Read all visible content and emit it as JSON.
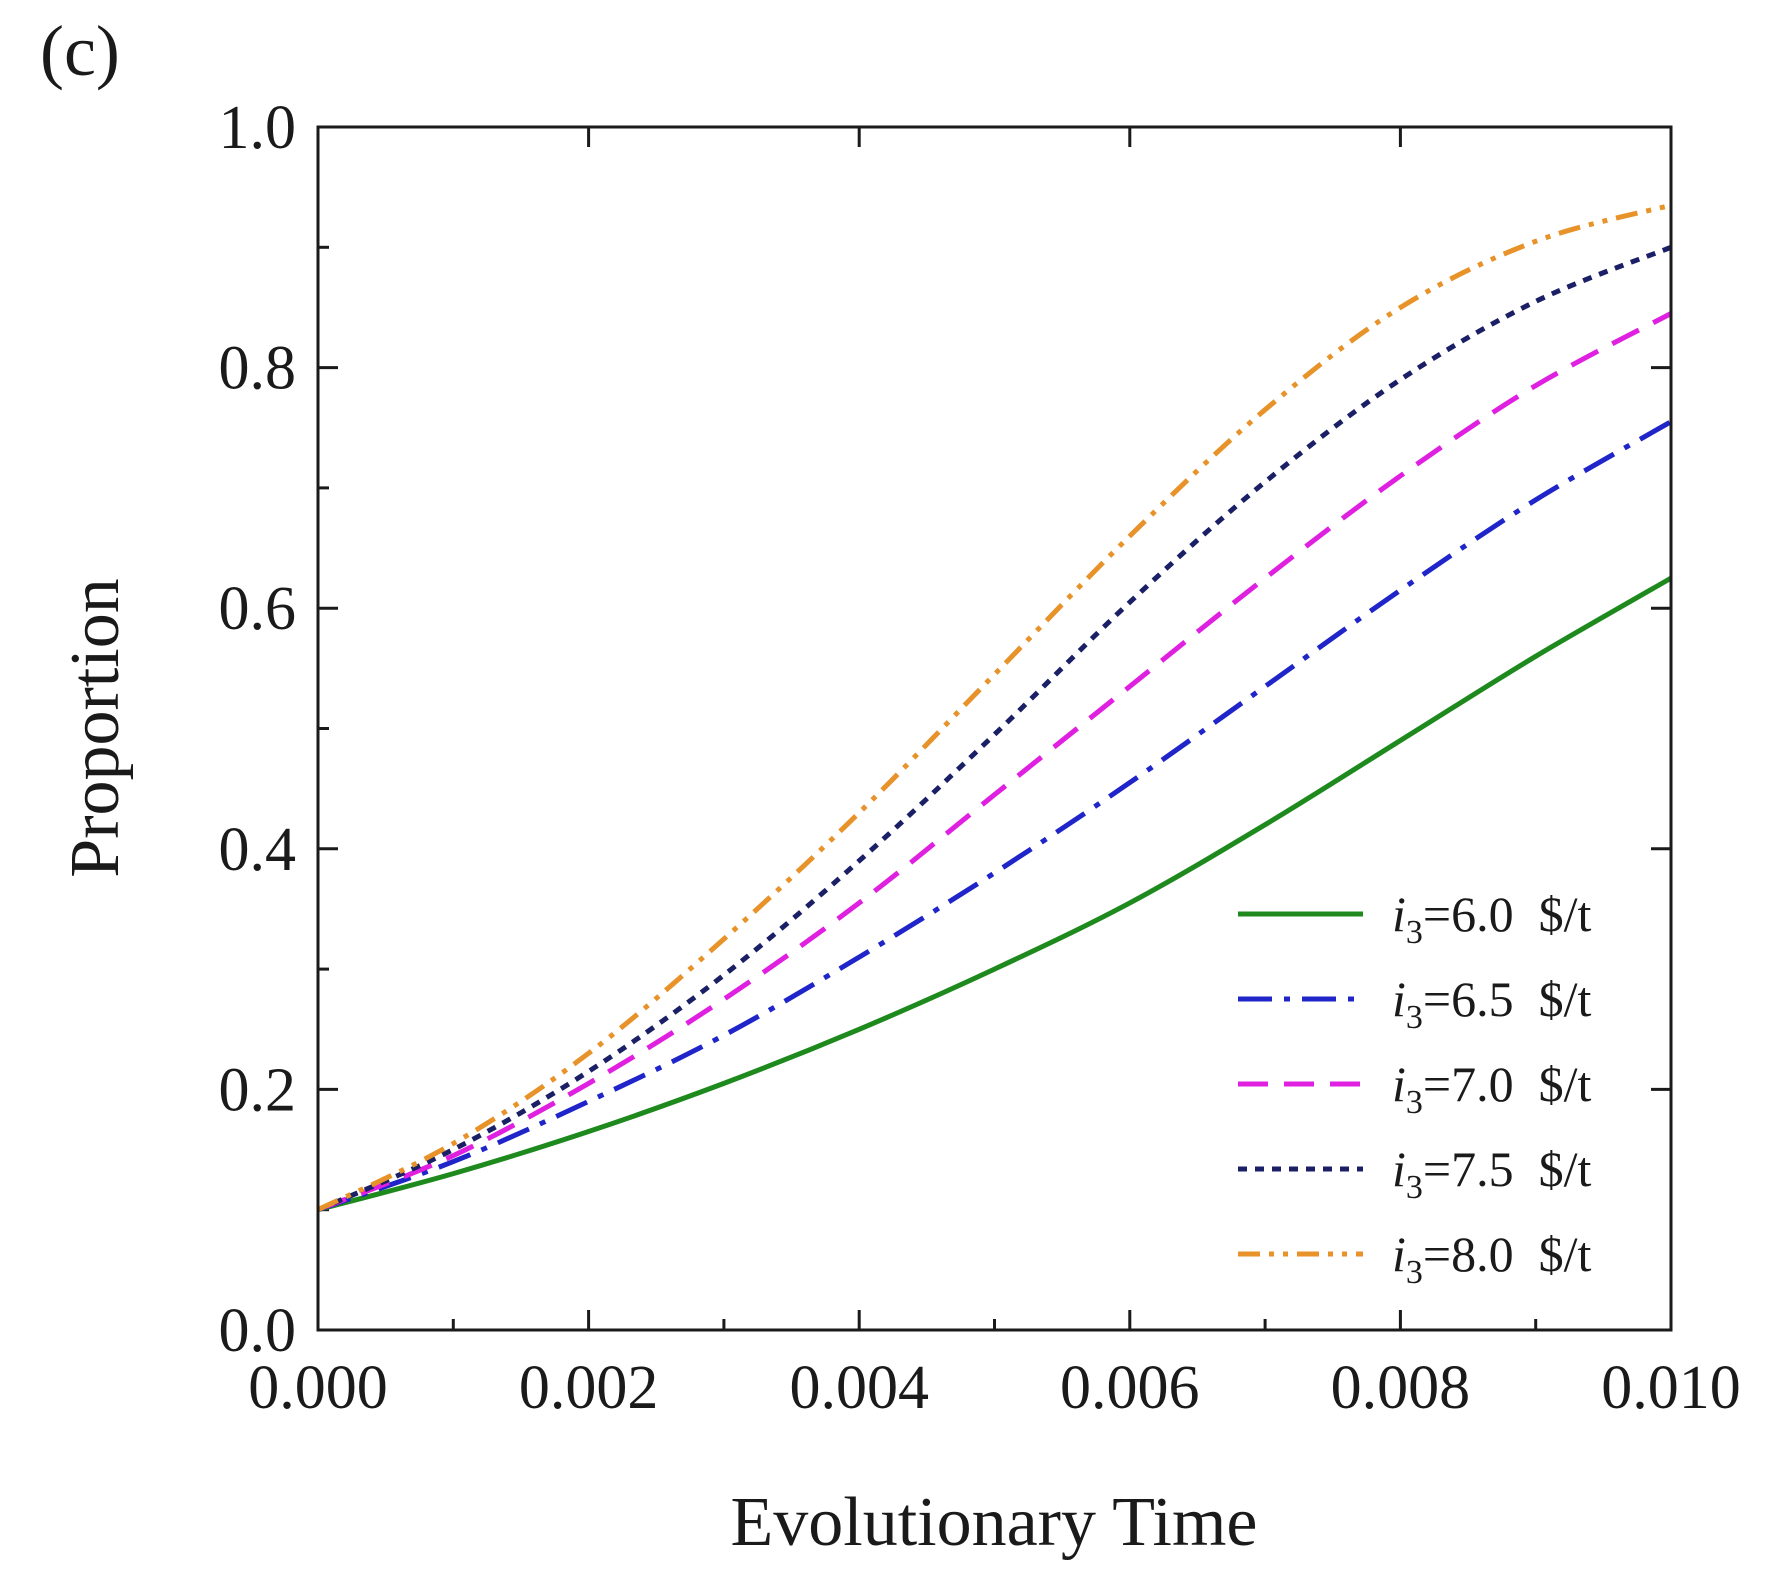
{
  "chart_data": {
    "type": "line",
    "panel_label": "(c)",
    "title": "",
    "xlabel": "Evolutionary Time",
    "ylabel": "Proportion",
    "xlim": [
      0.0,
      0.01
    ],
    "ylim": [
      0.0,
      1.0
    ],
    "xticks": [
      0.0,
      0.002,
      0.004,
      0.006,
      0.008,
      0.01
    ],
    "xtick_labels": [
      "0.000",
      "0.002",
      "0.004",
      "0.006",
      "0.008",
      "0.010"
    ],
    "yticks": [
      0.0,
      0.2,
      0.4,
      0.6,
      0.8,
      1.0
    ],
    "ytick_labels": [
      "0.0",
      "0.2",
      "0.4",
      "0.6",
      "0.8",
      "1.0"
    ],
    "legend_position": "bottom-right",
    "x": [
      0.0,
      0.001,
      0.002,
      0.003,
      0.004,
      0.005,
      0.006,
      0.007,
      0.008,
      0.009,
      0.01
    ],
    "series": [
      {
        "name": "i3=6.0 $/t",
        "label_main": "i",
        "label_sub": "3",
        "label_rest": "=6.0  $/t",
        "color": "#1e8a1e",
        "dash": "solid",
        "values": [
          0.1,
          0.13,
          0.165,
          0.205,
          0.25,
          0.3,
          0.355,
          0.42,
          0.49,
          0.56,
          0.625
        ]
      },
      {
        "name": "i3=6.5 $/t",
        "label_main": "i",
        "label_sub": "3",
        "label_rest": "=6.5  $/t",
        "color": "#1f25c8",
        "dash": "dashdot",
        "values": [
          0.1,
          0.14,
          0.19,
          0.245,
          0.31,
          0.38,
          0.455,
          0.535,
          0.615,
          0.69,
          0.755
        ]
      },
      {
        "name": "i3=7.0 $/t",
        "label_main": "i",
        "label_sub": "3",
        "label_rest": "=7.0  $/t",
        "color": "#e020e0",
        "dash": "dash",
        "values": [
          0.1,
          0.145,
          0.205,
          0.275,
          0.355,
          0.445,
          0.535,
          0.625,
          0.71,
          0.785,
          0.845
        ]
      },
      {
        "name": "i3=7.5 $/t",
        "label_main": "i",
        "label_sub": "3",
        "label_rest": "=7.5  $/t",
        "color": "#1a1f66",
        "dash": "dot",
        "values": [
          0.1,
          0.15,
          0.215,
          0.295,
          0.39,
          0.495,
          0.605,
          0.705,
          0.79,
          0.855,
          0.9
        ]
      },
      {
        "name": "i3=8.0 $/t",
        "label_main": "i",
        "label_sub": "3",
        "label_rest": "=8.0  $/t",
        "color": "#e8922a",
        "dash": "dashdotdot",
        "values": [
          0.1,
          0.155,
          0.23,
          0.325,
          0.43,
          0.545,
          0.66,
          0.765,
          0.85,
          0.905,
          0.935
        ]
      }
    ]
  }
}
